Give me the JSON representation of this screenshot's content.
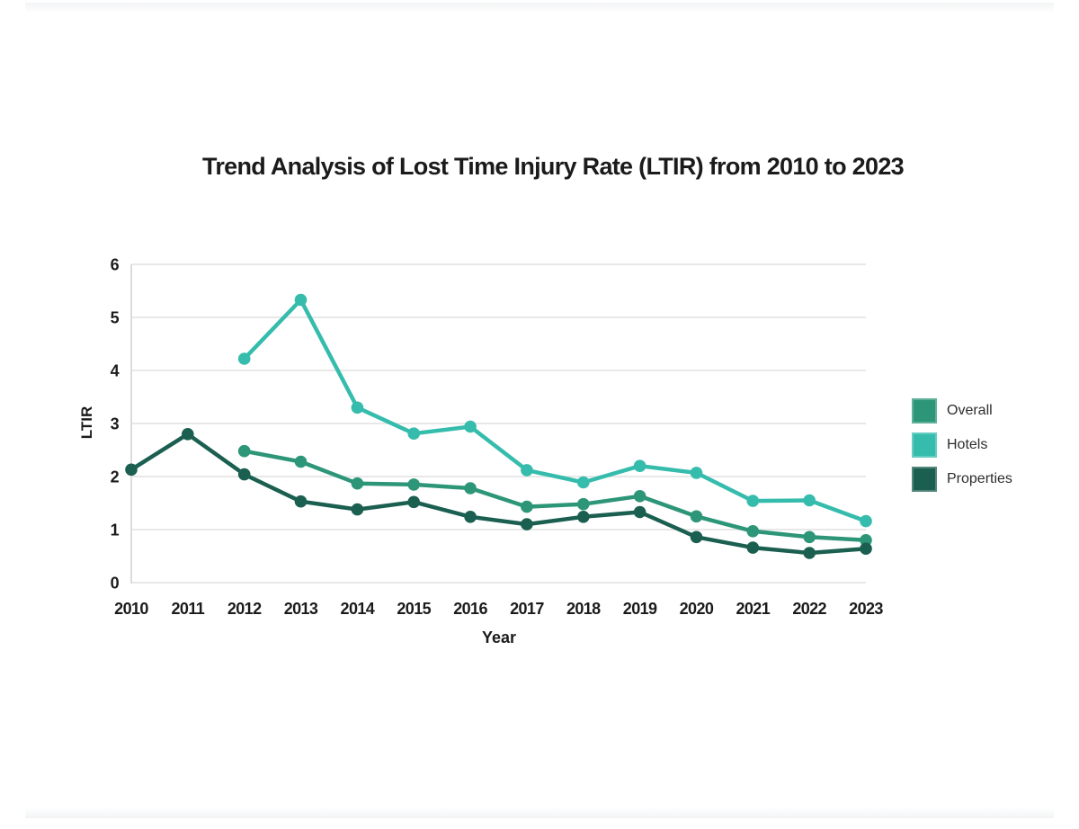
{
  "page": {
    "background": "#ffffff"
  },
  "chart_data": {
    "type": "line",
    "title": "Trend Analysis of Lost Time Injury Rate (LTIR) from 2010 to 2023",
    "xlabel": "Year",
    "ylabel": "LTIR",
    "categories": [
      "2010",
      "2011",
      "2012",
      "2013",
      "2014",
      "2015",
      "2016",
      "2017",
      "2018",
      "2019",
      "2020",
      "2021",
      "2022",
      "2023"
    ],
    "yticks": [
      0,
      1,
      2,
      3,
      4,
      5,
      6
    ],
    "ylim": [
      0,
      6
    ],
    "grid": true,
    "legend_position": "right",
    "colors": {
      "grid": "#e8e8e8",
      "axis": "#dcdcdc",
      "tick_text": "#1b1b1b"
    },
    "series": [
      {
        "name": "Overall",
        "color": "#2d9678",
        "values": [
          null,
          null,
          2.48,
          2.28,
          1.87,
          1.85,
          1.78,
          1.43,
          1.48,
          1.63,
          1.25,
          0.97,
          0.86,
          0.8
        ]
      },
      {
        "name": "Hotels",
        "color": "#35bcac",
        "values": [
          null,
          null,
          4.22,
          5.33,
          3.3,
          2.81,
          2.94,
          2.12,
          1.89,
          2.2,
          2.07,
          1.54,
          1.55,
          1.16
        ]
      },
      {
        "name": "Properties",
        "color": "#1b5f51",
        "values": [
          2.13,
          2.8,
          2.04,
          1.53,
          1.38,
          1.52,
          1.24,
          1.1,
          1.24,
          1.33,
          0.86,
          0.66,
          0.56,
          0.64
        ]
      }
    ]
  }
}
